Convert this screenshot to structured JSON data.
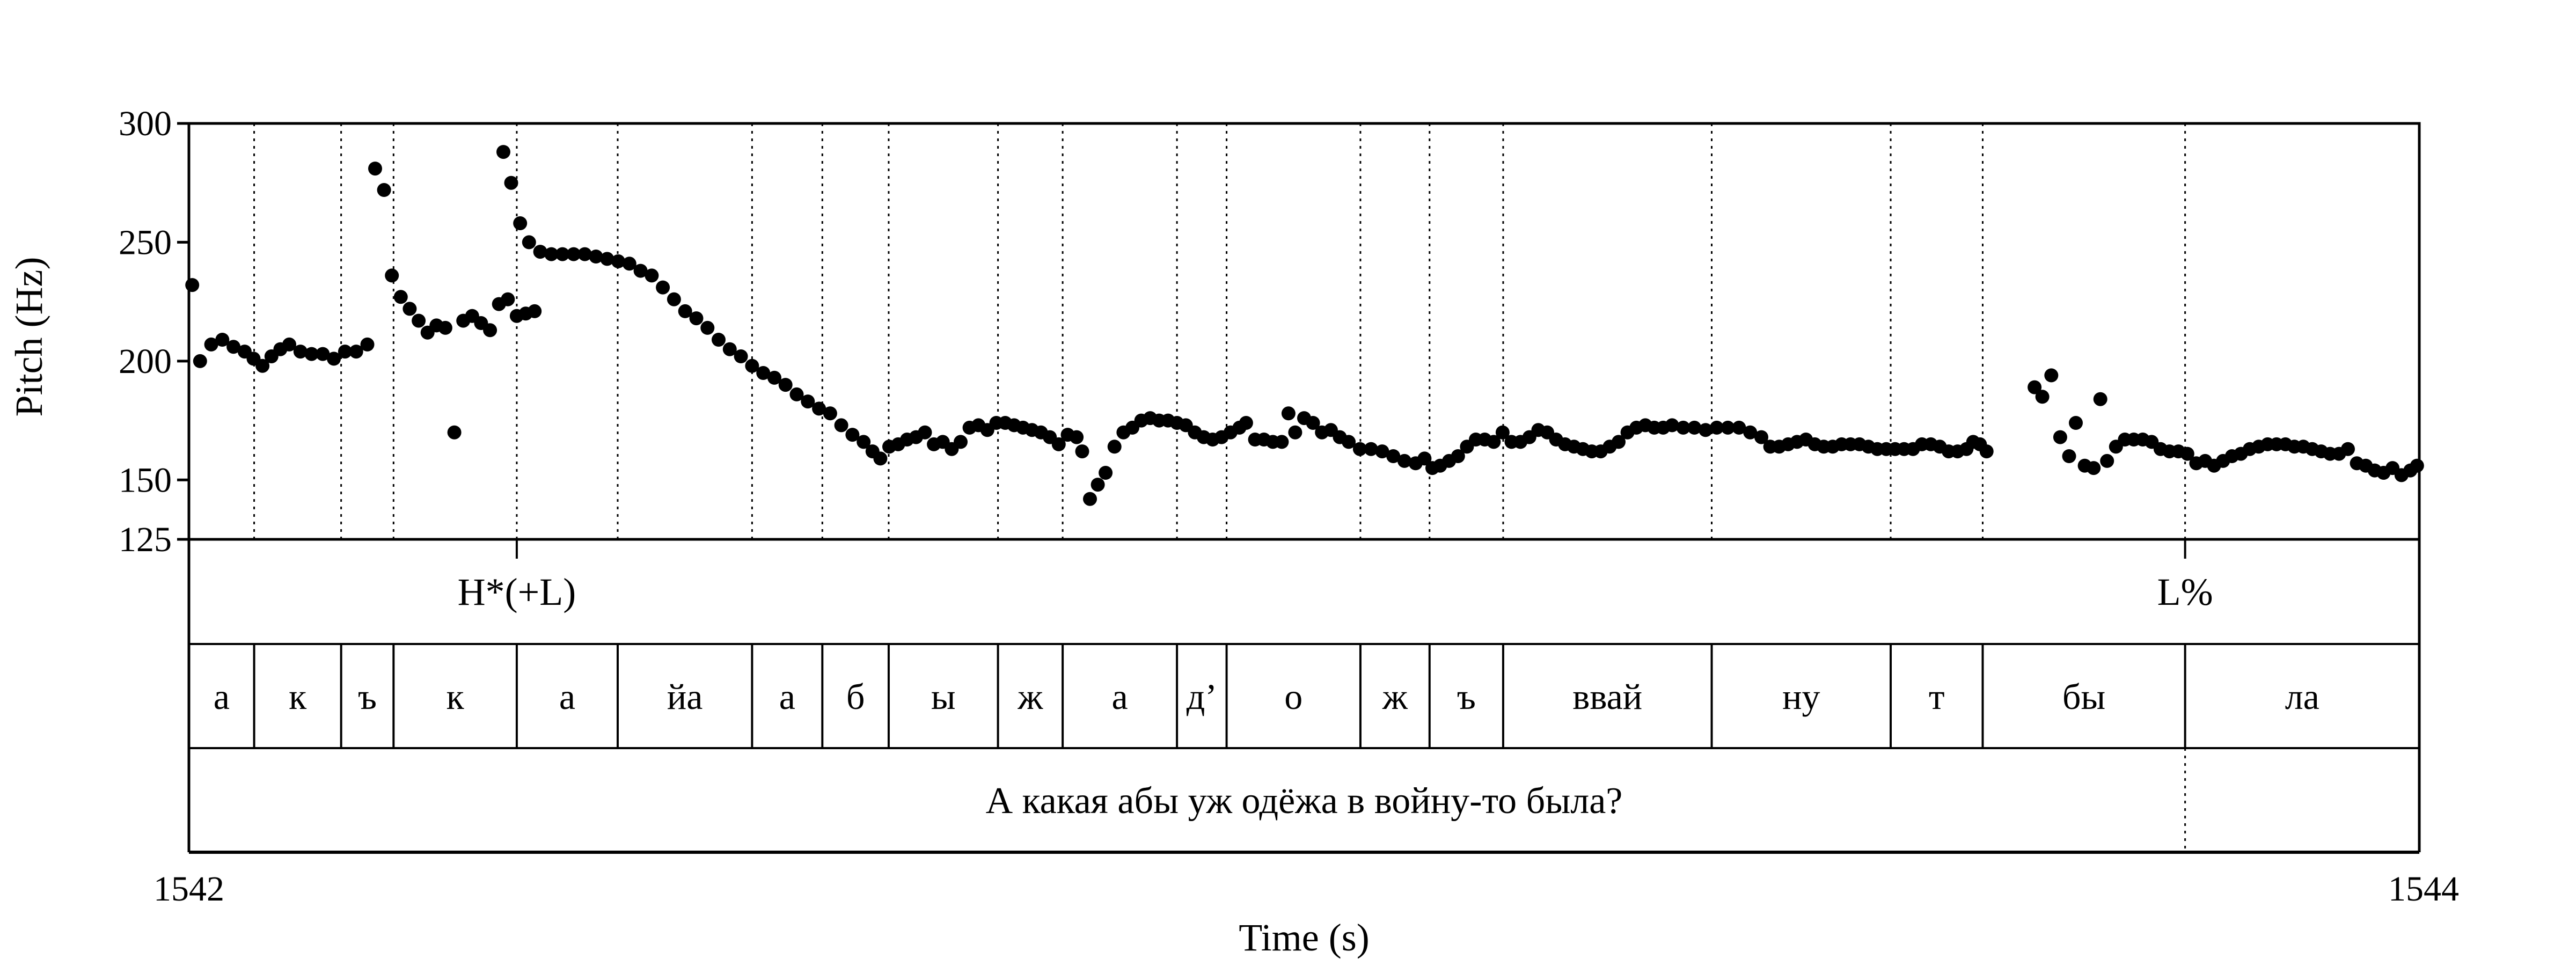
{
  "chart_data": {
    "type": "scatter",
    "xlabel": "Time (s)",
    "ylabel": "Pitch (Hz)",
    "xlim": [
      1542,
      1544
    ],
    "ylim": [
      125,
      300
    ],
    "x_tick_labels": [
      "1542",
      "1544"
    ],
    "y_ticks": [
      125,
      150,
      200,
      250,
      300
    ],
    "y_tick_labels": [
      "125",
      "150",
      "200",
      "250",
      "300"
    ],
    "segment_boundaries": [
      1542.0585,
      1542.1365,
      1542.1835,
      1542.294,
      1542.3845,
      1542.505,
      1542.568,
      1542.6275,
      1542.7255,
      1542.7835,
      1542.886,
      1542.9305,
      1543.0505,
      1543.1125,
      1543.1785,
      1543.3655,
      1543.526,
      1543.6085,
      1543.79
    ],
    "tones": [
      {
        "label": "H*(+L)",
        "time": 1542.294
      },
      {
        "label": "L%",
        "time": 1543.79
      }
    ],
    "segments": [
      "а",
      "к",
      "ъ",
      "к",
      "а",
      "йа",
      "а",
      "б",
      "ы",
      "ж",
      "а",
      "д’",
      "о",
      "ж",
      "ъ",
      "ввай",
      "ну",
      "т",
      "бы",
      "ла"
    ],
    "sentence": "А какая абы уж одёжа в войну-то была?",
    "sentence_boundary": 1543.79,
    "points": [
      [
        1542.003,
        232
      ],
      [
        1542.01,
        200
      ],
      [
        1542.02,
        207
      ],
      [
        1542.03,
        209
      ],
      [
        1542.04,
        206
      ],
      [
        1542.05,
        204
      ],
      [
        1542.058,
        201
      ],
      [
        1542.066,
        198
      ],
      [
        1542.074,
        202
      ],
      [
        1542.082,
        205
      ],
      [
        1542.09,
        207
      ],
      [
        1542.1,
        204
      ],
      [
        1542.11,
        203
      ],
      [
        1542.12,
        203
      ],
      [
        1542.13,
        201
      ],
      [
        1542.14,
        204
      ],
      [
        1542.15,
        204
      ],
      [
        1542.16,
        207
      ],
      [
        1542.167,
        281
      ],
      [
        1542.175,
        272
      ],
      [
        1542.182,
        236
      ],
      [
        1542.19,
        227
      ],
      [
        1542.198,
        222
      ],
      [
        1542.206,
        217
      ],
      [
        1542.214,
        212
      ],
      [
        1542.222,
        215
      ],
      [
        1542.23,
        214
      ],
      [
        1542.238,
        170
      ],
      [
        1542.246,
        217
      ],
      [
        1542.254,
        219
      ],
      [
        1542.262,
        216
      ],
      [
        1542.27,
        213
      ],
      [
        1542.278,
        224
      ],
      [
        1542.286,
        226
      ],
      [
        1542.294,
        219
      ],
      [
        1542.302,
        220
      ],
      [
        1542.31,
        221
      ],
      [
        1542.282,
        288
      ],
      [
        1542.289,
        275
      ],
      [
        1542.297,
        258
      ],
      [
        1542.305,
        250
      ],
      [
        1542.315,
        246
      ],
      [
        1542.325,
        245
      ],
      [
        1542.335,
        245
      ],
      [
        1542.345,
        245
      ],
      [
        1542.355,
        245
      ],
      [
        1542.365,
        244
      ],
      [
        1542.375,
        243
      ],
      [
        1542.385,
        242
      ],
      [
        1542.395,
        241
      ],
      [
        1542.405,
        238
      ],
      [
        1542.415,
        236
      ],
      [
        1542.425,
        231
      ],
      [
        1542.435,
        226
      ],
      [
        1542.445,
        221
      ],
      [
        1542.455,
        218
      ],
      [
        1542.465,
        214
      ],
      [
        1542.475,
        209
      ],
      [
        1542.485,
        205
      ],
      [
        1542.495,
        202
      ],
      [
        1542.505,
        198
      ],
      [
        1542.515,
        195
      ],
      [
        1542.525,
        193
      ],
      [
        1542.535,
        190
      ],
      [
        1542.545,
        186
      ],
      [
        1542.555,
        183
      ],
      [
        1542.565,
        180
      ],
      [
        1542.575,
        178
      ],
      [
        1542.585,
        173
      ],
      [
        1542.595,
        169
      ],
      [
        1542.605,
        166
      ],
      [
        1542.613,
        162
      ],
      [
        1542.62,
        159
      ],
      [
        1542.628,
        164
      ],
      [
        1542.636,
        165
      ],
      [
        1542.644,
        167
      ],
      [
        1542.652,
        168
      ],
      [
        1542.66,
        170
      ],
      [
        1542.668,
        165
      ],
      [
        1542.676,
        166
      ],
      [
        1542.684,
        163
      ],
      [
        1542.692,
        166
      ],
      [
        1542.7,
        172
      ],
      [
        1542.708,
        173
      ],
      [
        1542.716,
        171
      ],
      [
        1542.724,
        174
      ],
      [
        1542.732,
        174
      ],
      [
        1542.74,
        173
      ],
      [
        1542.748,
        172
      ],
      [
        1542.756,
        171
      ],
      [
        1542.764,
        170
      ],
      [
        1542.772,
        168
      ],
      [
        1542.78,
        165
      ],
      [
        1542.788,
        169
      ],
      [
        1542.796,
        168
      ],
      [
        1542.801,
        162
      ],
      [
        1542.808,
        142
      ],
      [
        1542.815,
        148
      ],
      [
        1542.822,
        153
      ],
      [
        1542.83,
        164
      ],
      [
        1542.838,
        170
      ],
      [
        1542.846,
        172
      ],
      [
        1542.854,
        175
      ],
      [
        1542.862,
        176
      ],
      [
        1542.87,
        175
      ],
      [
        1542.878,
        175
      ],
      [
        1542.886,
        174
      ],
      [
        1542.894,
        173
      ],
      [
        1542.902,
        170
      ],
      [
        1542.91,
        168
      ],
      [
        1542.918,
        167
      ],
      [
        1542.926,
        168
      ],
      [
        1542.934,
        170
      ],
      [
        1542.942,
        172
      ],
      [
        1542.948,
        174
      ],
      [
        1542.956,
        167
      ],
      [
        1542.964,
        167
      ],
      [
        1542.972,
        166
      ],
      [
        1542.98,
        166
      ],
      [
        1542.986,
        178
      ],
      [
        1542.992,
        170
      ],
      [
        1543.0,
        176
      ],
      [
        1543.008,
        174
      ],
      [
        1543.016,
        170
      ],
      [
        1543.024,
        171
      ],
      [
        1543.032,
        168
      ],
      [
        1543.04,
        166
      ],
      [
        1543.05,
        163
      ],
      [
        1543.06,
        163
      ],
      [
        1543.07,
        162
      ],
      [
        1543.08,
        160
      ],
      [
        1543.09,
        158
      ],
      [
        1543.1,
        157
      ],
      [
        1543.108,
        159
      ],
      [
        1543.115,
        155
      ],
      [
        1543.122,
        156
      ],
      [
        1543.13,
        158
      ],
      [
        1543.138,
        160
      ],
      [
        1543.146,
        164
      ],
      [
        1543.154,
        167
      ],
      [
        1543.162,
        167
      ],
      [
        1543.17,
        166
      ],
      [
        1543.178,
        170
      ],
      [
        1543.186,
        166
      ],
      [
        1543.194,
        166
      ],
      [
        1543.202,
        168
      ],
      [
        1543.21,
        171
      ],
      [
        1543.218,
        170
      ],
      [
        1543.226,
        167
      ],
      [
        1543.234,
        165
      ],
      [
        1543.242,
        164
      ],
      [
        1543.25,
        163
      ],
      [
        1543.258,
        162
      ],
      [
        1543.266,
        162
      ],
      [
        1543.274,
        164
      ],
      [
        1543.282,
        166
      ],
      [
        1543.29,
        170
      ],
      [
        1543.298,
        172
      ],
      [
        1543.306,
        173
      ],
      [
        1543.314,
        172
      ],
      [
        1543.322,
        172
      ],
      [
        1543.33,
        173
      ],
      [
        1543.34,
        172
      ],
      [
        1543.35,
        172
      ],
      [
        1543.36,
        171
      ],
      [
        1543.37,
        172
      ],
      [
        1543.38,
        172
      ],
      [
        1543.39,
        172
      ],
      [
        1543.4,
        170
      ],
      [
        1543.41,
        168
      ],
      [
        1543.418,
        164
      ],
      [
        1543.426,
        164
      ],
      [
        1543.434,
        165
      ],
      [
        1543.442,
        166
      ],
      [
        1543.45,
        167
      ],
      [
        1543.458,
        165
      ],
      [
        1543.466,
        164
      ],
      [
        1543.474,
        164
      ],
      [
        1543.482,
        165
      ],
      [
        1543.49,
        165
      ],
      [
        1543.498,
        165
      ],
      [
        1543.506,
        164
      ],
      [
        1543.514,
        163
      ],
      [
        1543.522,
        163
      ],
      [
        1543.53,
        163
      ],
      [
        1543.538,
        163
      ],
      [
        1543.546,
        163
      ],
      [
        1543.554,
        165
      ],
      [
        1543.562,
        165
      ],
      [
        1543.57,
        164
      ],
      [
        1543.578,
        162
      ],
      [
        1543.586,
        162
      ],
      [
        1543.594,
        163
      ],
      [
        1543.6,
        166
      ],
      [
        1543.606,
        165
      ],
      [
        1543.612,
        162
      ],
      [
        1543.655,
        189
      ],
      [
        1543.662,
        185
      ],
      [
        1543.67,
        194
      ],
      [
        1543.678,
        168
      ],
      [
        1543.686,
        160
      ],
      [
        1543.692,
        174
      ],
      [
        1543.7,
        156
      ],
      [
        1543.708,
        155
      ],
      [
        1543.714,
        184
      ],
      [
        1543.72,
        158
      ],
      [
        1543.728,
        164
      ],
      [
        1543.736,
        167
      ],
      [
        1543.744,
        167
      ],
      [
        1543.752,
        167
      ],
      [
        1543.76,
        166
      ],
      [
        1543.768,
        163
      ],
      [
        1543.776,
        162
      ],
      [
        1543.784,
        162
      ],
      [
        1543.792,
        161
      ],
      [
        1543.8,
        157
      ],
      [
        1543.808,
        158
      ],
      [
        1543.816,
        156
      ],
      [
        1543.824,
        158
      ],
      [
        1543.832,
        160
      ],
      [
        1543.84,
        161
      ],
      [
        1543.848,
        163
      ],
      [
        1543.856,
        164
      ],
      [
        1543.864,
        165
      ],
      [
        1543.872,
        165
      ],
      [
        1543.88,
        165
      ],
      [
        1543.888,
        164
      ],
      [
        1543.896,
        164
      ],
      [
        1543.904,
        163
      ],
      [
        1543.912,
        162
      ],
      [
        1543.92,
        161
      ],
      [
        1543.928,
        161
      ],
      [
        1543.936,
        163
      ],
      [
        1543.944,
        157
      ],
      [
        1543.952,
        156
      ],
      [
        1543.96,
        154
      ],
      [
        1543.968,
        153
      ],
      [
        1543.976,
        155
      ],
      [
        1543.984,
        152
      ],
      [
        1543.992,
        154
      ],
      [
        1543.998,
        156
      ]
    ]
  }
}
